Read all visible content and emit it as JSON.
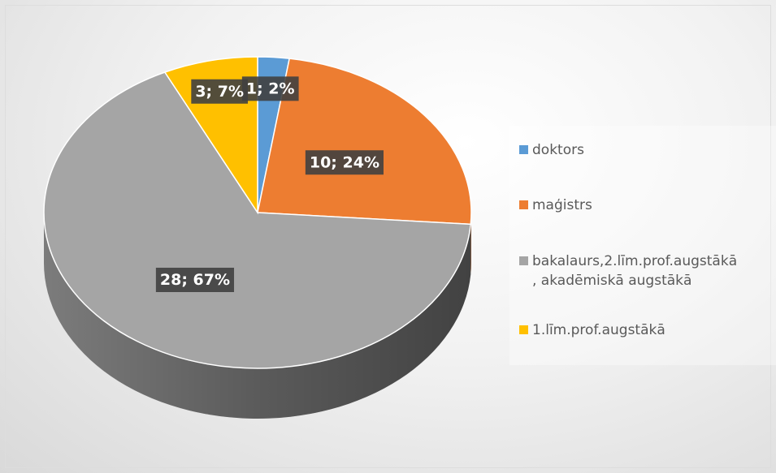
{
  "chart_data": {
    "type": "pie",
    "categories": [
      "doktors",
      "maģistrs",
      "bakalaurs,2.līm.prof.augstākā\n, akadēmiskā augstākā",
      "1.līm.prof.augstākā"
    ],
    "values": [
      1,
      10,
      28,
      3
    ],
    "value_labels": [
      "1; 2%",
      "10; 24%",
      "28; 67%",
      "3; 7%"
    ],
    "colors": [
      "#5b9bd5",
      "#ed7d31",
      "#a5a5a5",
      "#ffc000"
    ],
    "legend": "right"
  }
}
